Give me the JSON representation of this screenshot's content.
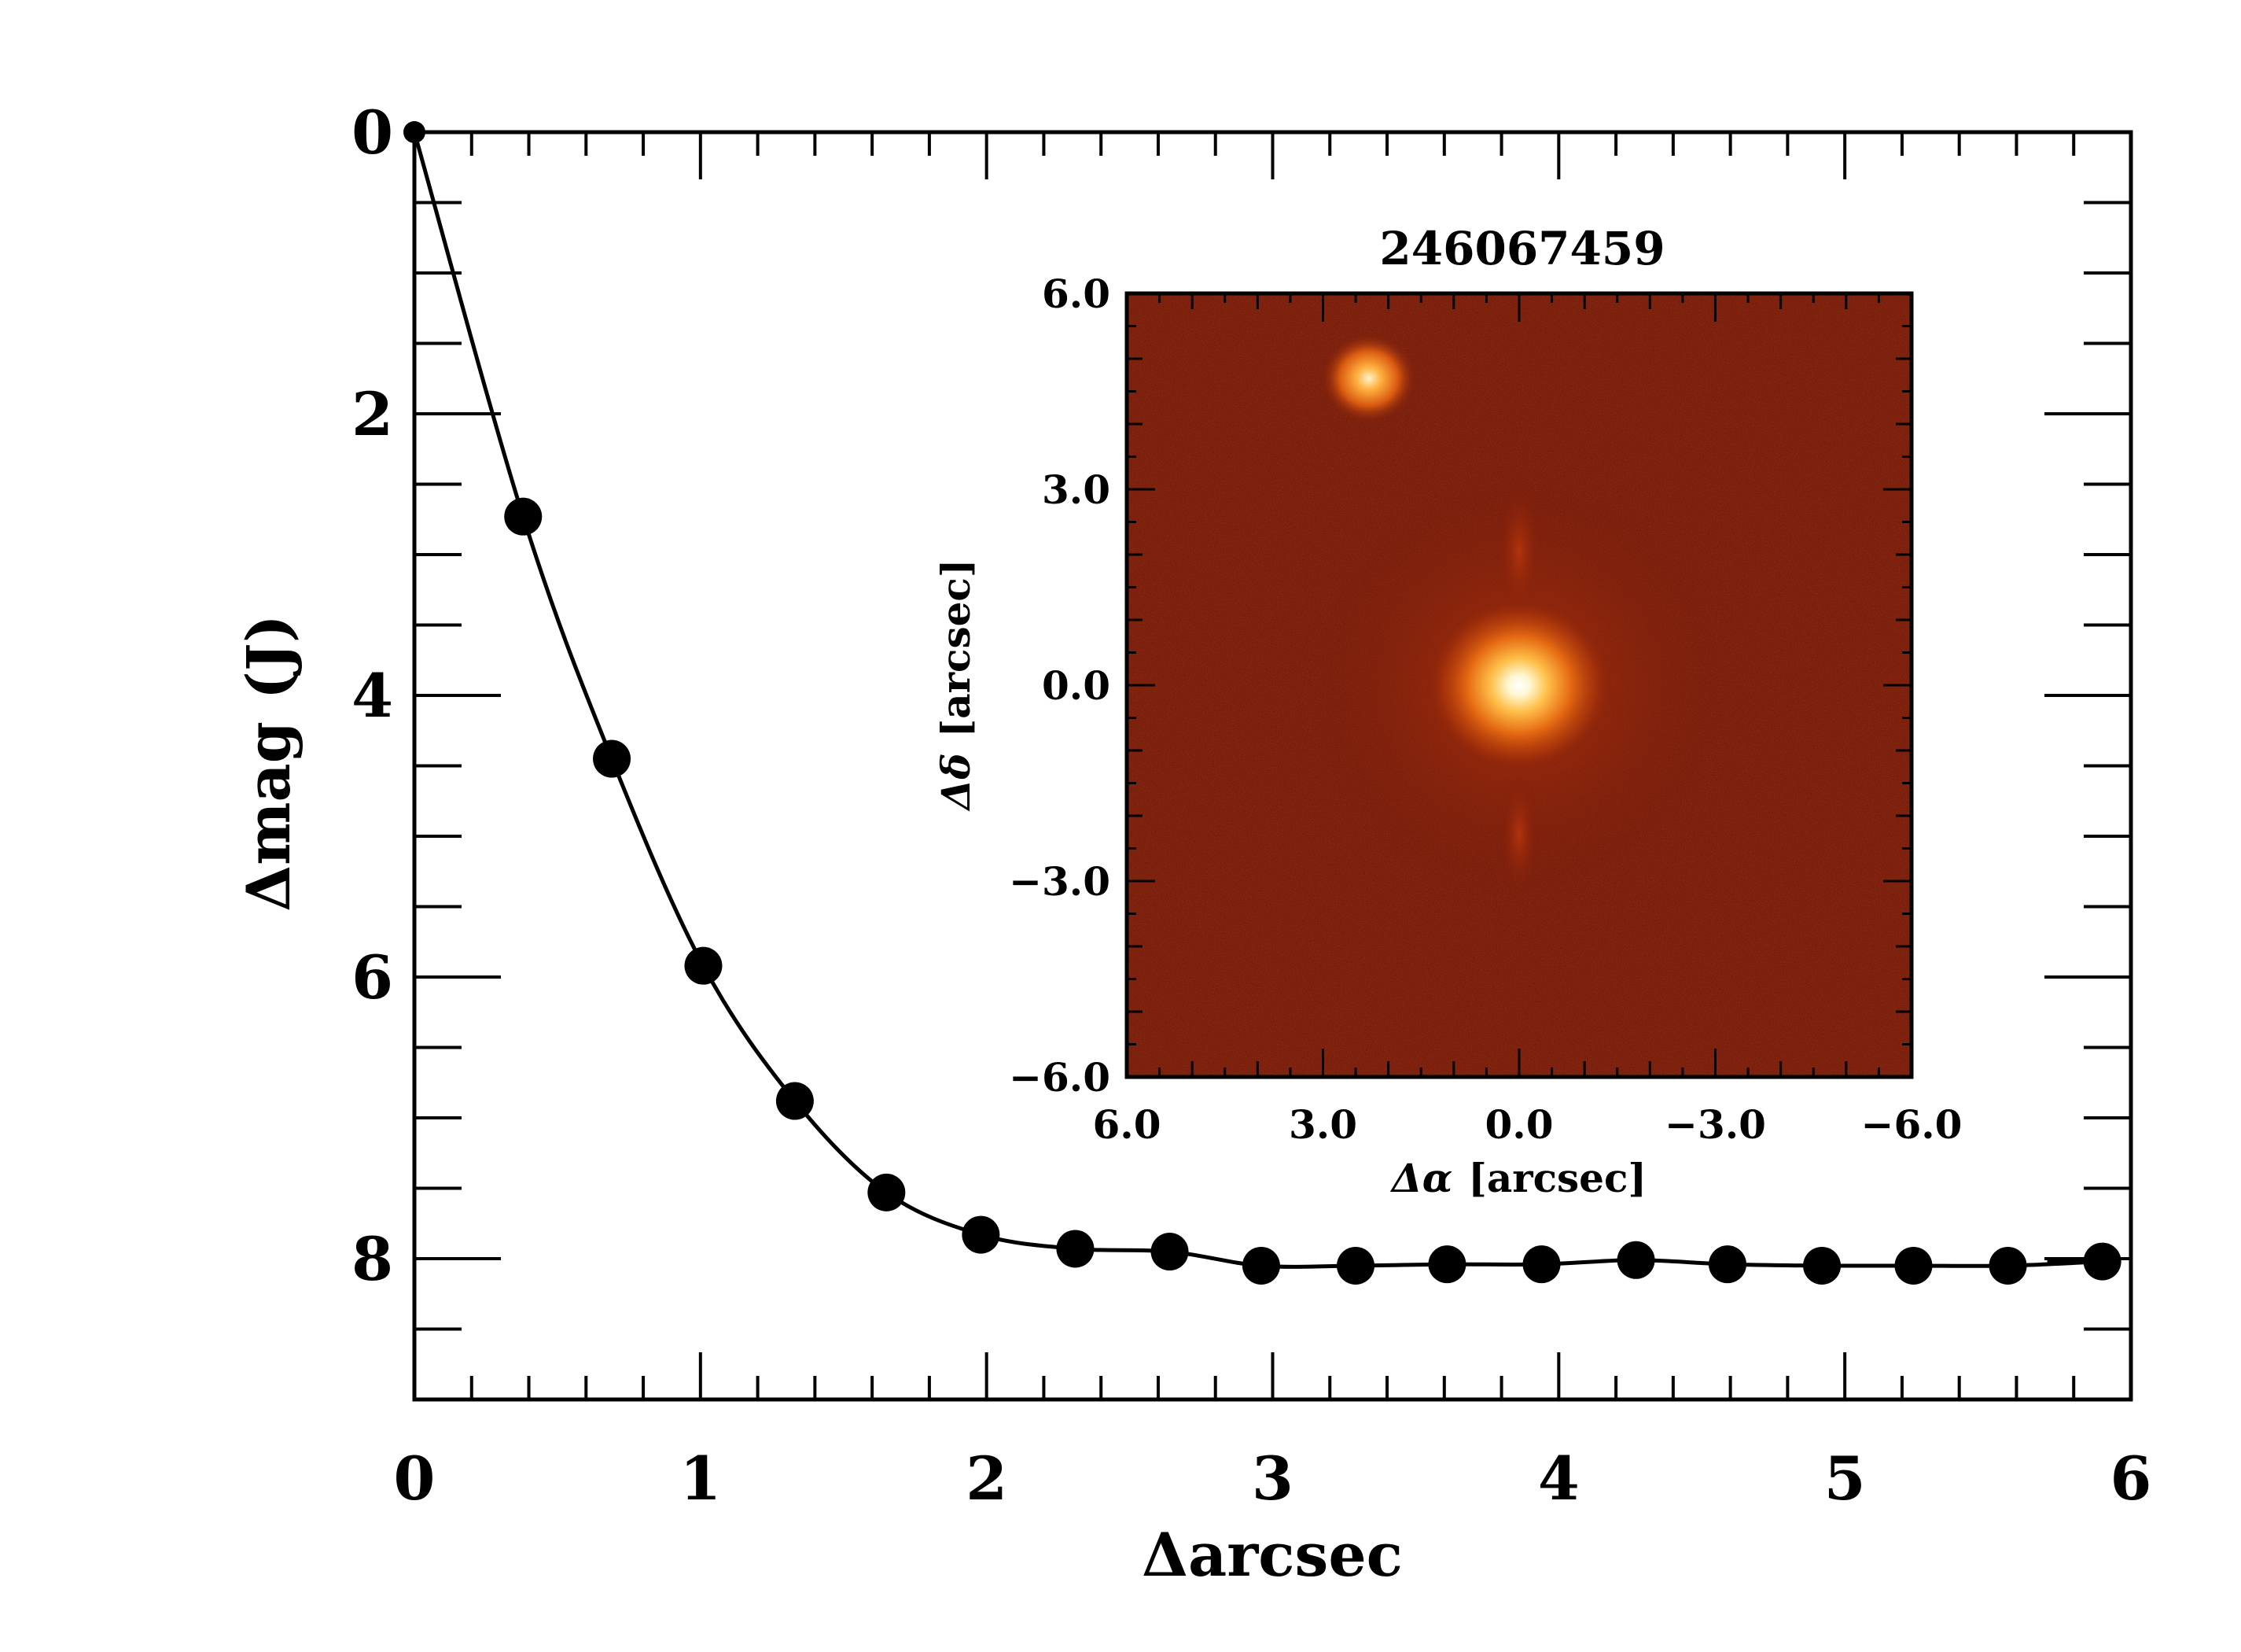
{
  "chart_data": [
    {
      "type": "line",
      "xlabel": "Δarcsec",
      "ylabel_prefix": "Δmag",
      "ylabel_band": "(J)",
      "xlim": [
        0,
        6
      ],
      "ylim": [
        9,
        0
      ],
      "x_major_ticks": [
        0,
        1,
        2,
        3,
        4,
        5,
        6
      ],
      "x_minor_step": 0.2,
      "y_major_ticks": [
        0,
        2,
        4,
        6,
        8
      ],
      "y_minor_step": 0.5,
      "marker": "filled-circle",
      "grid": false,
      "series": [
        {
          "x": [
            0.0,
            0.38,
            0.69,
            1.01,
            1.33,
            1.65,
            1.98,
            2.31,
            2.64,
            2.96,
            3.29,
            3.61,
            3.94,
            4.27,
            4.59,
            4.92,
            5.24,
            5.57,
            5.9
          ],
          "y": [
            0.0,
            2.73,
            4.45,
            5.92,
            6.88,
            7.53,
            7.83,
            7.93,
            7.95,
            8.05,
            8.05,
            8.04,
            8.04,
            8.01,
            8.04,
            8.05,
            8.05,
            8.05,
            8.02
          ]
        }
      ]
    },
    {
      "type": "image",
      "title": "246067459",
      "xlabel_symbol": "Δα",
      "ylabel_symbol": "Δδ",
      "axis_unit": "[arcsec]",
      "xlim": [
        6.0,
        -6.0
      ],
      "ylim": [
        -6.0,
        6.0
      ],
      "x_tick_labels": [
        "6.0",
        "3.0",
        "0.0",
        "−3.0",
        "−6.0"
      ],
      "y_tick_labels": [
        "−6.0",
        "−3.0",
        "0.0",
        "3.0",
        "6.0"
      ],
      "x_ticks": [
        6.0,
        3.0,
        0.0,
        -3.0,
        -6.0
      ],
      "y_ticks": [
        -6.0,
        -3.0,
        0.0,
        3.0,
        6.0
      ],
      "colormap": "red-temperature",
      "background_color": "#7a1a08",
      "sources": [
        {
          "ra_offset": 0.0,
          "dec_offset": 0.0,
          "brightness": "primary"
        },
        {
          "ra_offset": 2.3,
          "dec_offset": 4.7,
          "brightness": "companion"
        }
      ]
    }
  ]
}
